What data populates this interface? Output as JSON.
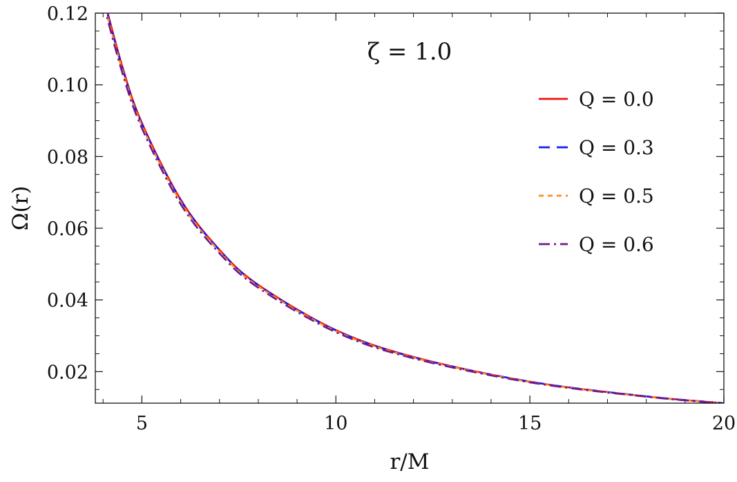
{
  "chart_data": {
    "type": "line",
    "title": "",
    "xlabel": "r/M",
    "ylabel": "Ω(r)",
    "annotation": "ζ = 1.0",
    "xlim": [
      3.8,
      20
    ],
    "ylim": [
      0.0112,
      0.12
    ],
    "x_ticks": [
      5,
      10,
      15,
      20
    ],
    "y_ticks": [
      0.02,
      0.04,
      0.06,
      0.08,
      0.1,
      0.12
    ],
    "x_tick_labels": [
      "5",
      "10",
      "15",
      "20"
    ],
    "y_tick_labels": [
      "0.02",
      "0.04",
      "0.06",
      "0.08",
      "0.10",
      "0.12"
    ],
    "legend_position": "right",
    "grid": false,
    "series": [
      {
        "name": "Q = 0.0",
        "color": "#ee1111",
        "dash": "solid",
        "x": [
          4.0,
          4.5,
          5.0,
          6.0,
          7.0,
          8.0,
          10.0,
          12.0,
          15.0,
          18.0,
          20.0
        ],
        "y": [
          0.125,
          0.105,
          0.0894,
          0.068,
          0.054,
          0.0442,
          0.0316,
          0.0241,
          0.0172,
          0.0131,
          0.0112
        ]
      },
      {
        "name": "Q = 0.3",
        "color": "#1a1aee",
        "dash": "long-dash",
        "x": [
          4.0,
          4.5,
          5.0,
          6.0,
          7.0,
          8.0,
          10.0,
          12.0,
          15.0,
          18.0,
          20.0
        ],
        "y": [
          0.1245,
          0.1046,
          0.0891,
          0.0678,
          0.0539,
          0.0441,
          0.0315,
          0.024,
          0.0172,
          0.0131,
          0.0112
        ]
      },
      {
        "name": "Q = 0.5",
        "color": "#ff8c1a",
        "dash": "short-dash",
        "x": [
          4.0,
          4.5,
          5.0,
          6.0,
          7.0,
          8.0,
          10.0,
          12.0,
          15.0,
          18.0,
          20.0
        ],
        "y": [
          0.1238,
          0.104,
          0.0886,
          0.0673,
          0.0535,
          0.0438,
          0.0313,
          0.0239,
          0.0171,
          0.013,
          0.0112
        ]
      },
      {
        "name": "Q = 0.6",
        "color": "#6e1a8e",
        "dash": "dash-dot",
        "x": [
          4.0,
          4.5,
          5.0,
          6.0,
          7.0,
          8.0,
          10.0,
          12.0,
          15.0,
          18.0,
          20.0
        ],
        "y": [
          0.123,
          0.1032,
          0.0879,
          0.0667,
          0.053,
          0.0434,
          0.031,
          0.0237,
          0.017,
          0.013,
          0.0111
        ]
      }
    ]
  }
}
